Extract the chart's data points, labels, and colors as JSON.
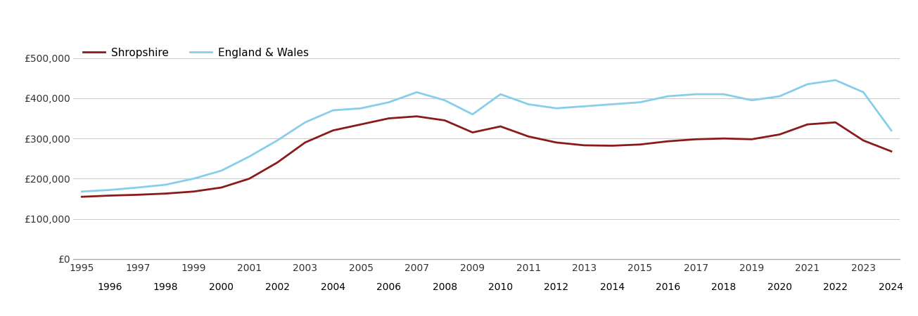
{
  "years": [
    1995,
    1996,
    1997,
    1998,
    1999,
    2000,
    2001,
    2002,
    2003,
    2004,
    2005,
    2006,
    2007,
    2008,
    2009,
    2010,
    2011,
    2012,
    2013,
    2014,
    2015,
    2016,
    2017,
    2018,
    2019,
    2020,
    2021,
    2022,
    2023,
    2024
  ],
  "shropshire": [
    155000,
    158000,
    160000,
    163000,
    168000,
    178000,
    200000,
    240000,
    290000,
    320000,
    335000,
    350000,
    355000,
    345000,
    315000,
    330000,
    305000,
    290000,
    283000,
    282000,
    285000,
    293000,
    298000,
    300000,
    298000,
    310000,
    335000,
    340000,
    295000,
    268000
  ],
  "england_wales": [
    168000,
    172000,
    178000,
    185000,
    200000,
    220000,
    255000,
    295000,
    340000,
    370000,
    375000,
    390000,
    415000,
    395000,
    360000,
    410000,
    385000,
    375000,
    380000,
    385000,
    390000,
    405000,
    410000,
    410000,
    395000,
    405000,
    435000,
    445000,
    415000,
    320000
  ],
  "shropshire_color": "#8B1A1A",
  "england_wales_color": "#87CEEB",
  "background_color": "#ffffff",
  "grid_color": "#cccccc",
  "legend_labels": [
    "Shropshire",
    "England & Wales"
  ],
  "ylim": [
    0,
    550000
  ],
  "ytick_values": [
    0,
    100000,
    200000,
    300000,
    400000,
    500000
  ],
  "ytick_labels": [
    "£0",
    "£100,000",
    "£200,000",
    "£300,000",
    "£400,000",
    "£500,000"
  ],
  "line_width": 2.0
}
